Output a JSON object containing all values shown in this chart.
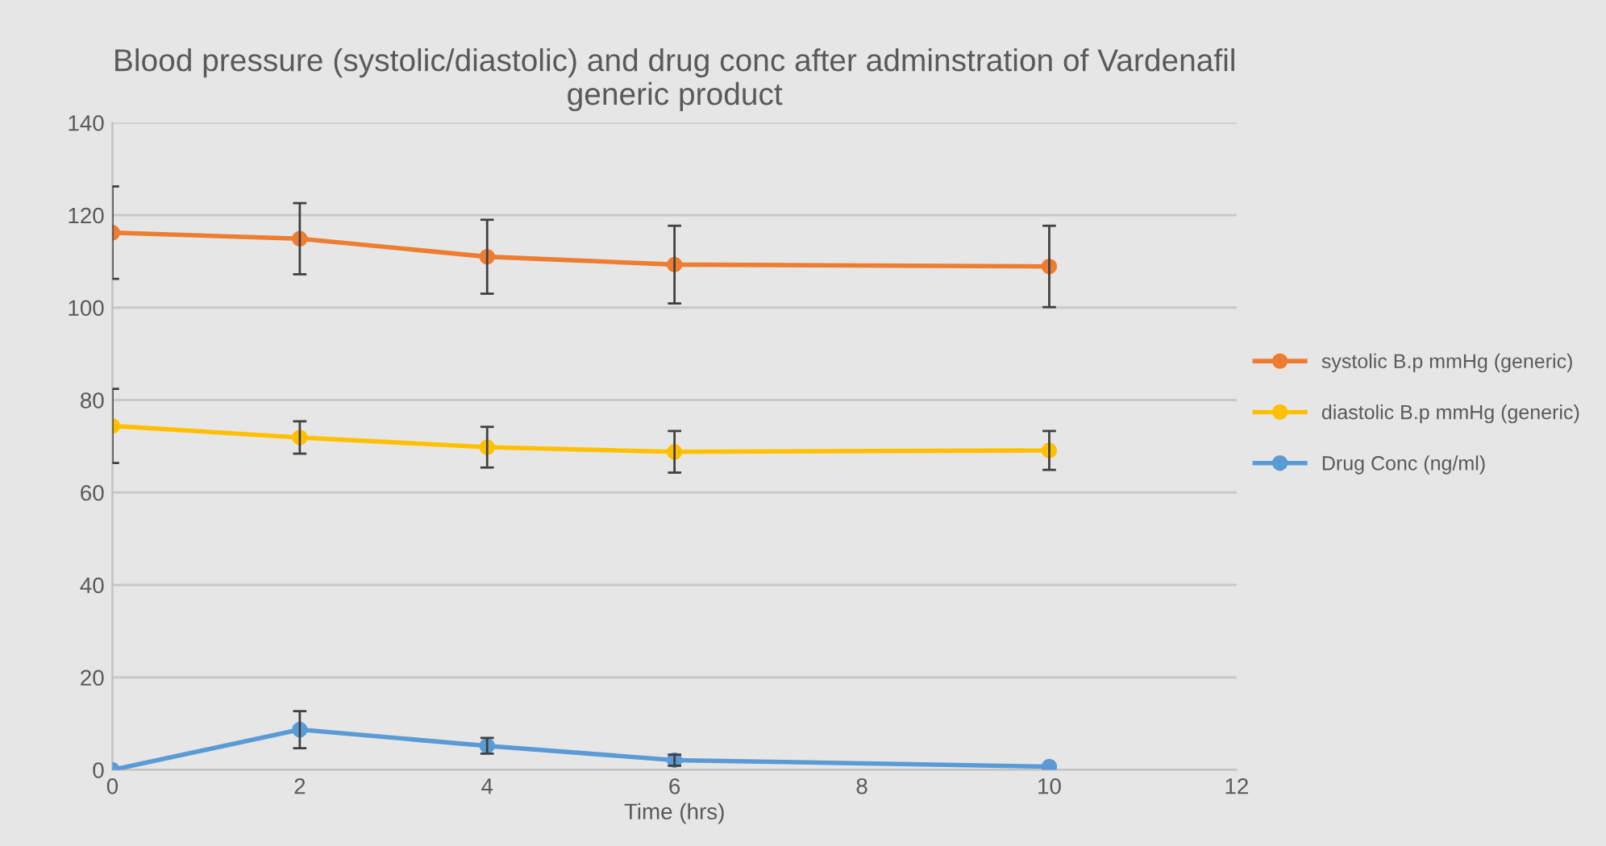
{
  "chart_data": {
    "type": "line",
    "title": "Blood pressure (systolic/diastolic) and drug conc after adminstration of Vardenafil\ngeneric product",
    "xlabel": "Time (hrs)",
    "x": [
      0,
      2,
      4,
      6,
      10
    ],
    "xlim": [
      0,
      12
    ],
    "xticks": [
      0,
      2,
      4,
      6,
      8,
      10,
      12
    ],
    "ylim": [
      0,
      140
    ],
    "yticks": [
      0,
      20,
      40,
      60,
      80,
      100,
      120,
      140
    ],
    "grid": "y",
    "legend": "right",
    "marker": "circle",
    "line_style": "solid",
    "series": [
      {
        "name": "systolic B.p mmHg (generic)",
        "color": "#ed7d31",
        "values": [
          116.2,
          114.9,
          111.0,
          109.3,
          108.9
        ],
        "errors": [
          10,
          7.7,
          8,
          8.4,
          8.8
        ]
      },
      {
        "name": "diastolic B.p mmHg (generic)",
        "color": "#ffc000",
        "values": [
          74.4,
          71.9,
          69.8,
          68.8,
          69.1
        ],
        "errors": [
          8,
          3.5,
          4.4,
          4.5,
          4.2
        ]
      },
      {
        "name": "Drug Conc (ng/ml)",
        "color": "#5b9bd5",
        "values": [
          0,
          8.7,
          5.2,
          2.1,
          0.7
        ],
        "errors": [
          null,
          4,
          1.7,
          1.2,
          null
        ]
      }
    ]
  }
}
